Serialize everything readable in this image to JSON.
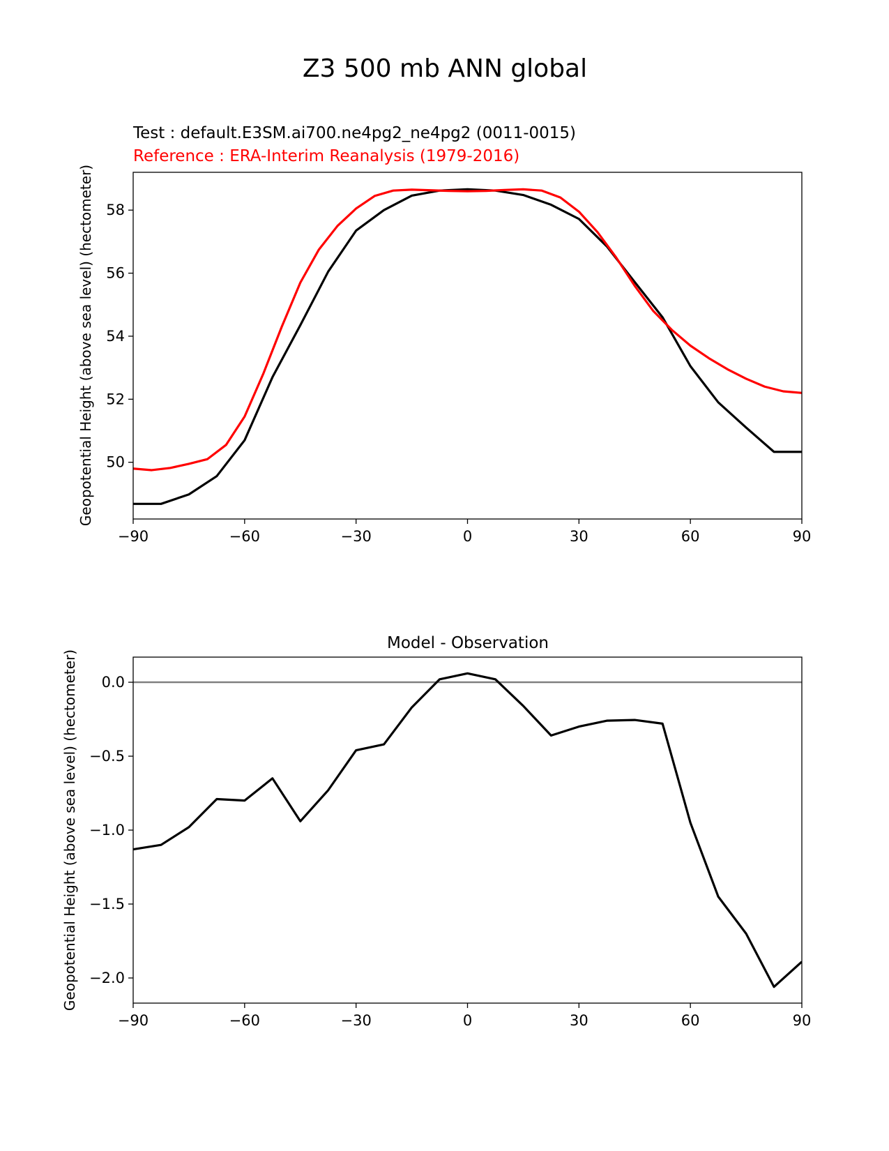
{
  "figure": {
    "suptitle": "Z3 500 mb ANN global"
  },
  "chart_data": [
    {
      "type": "line",
      "test_label": "Test : default.E3SM.ai700.ne4pg2_ne4pg2 (0011-0015)",
      "reference_label": "Reference : ERA-Interim Reanalysis (1979-2016)",
      "xlabel": "",
      "ylabel": "Geopotential Height (above sea level) (hectometer)",
      "xlim": [
        -90,
        90
      ],
      "ylim": [
        48.2,
        59.2
      ],
      "xticks": [
        -90,
        -60,
        -30,
        0,
        30,
        60,
        90
      ],
      "xtick_labels": [
        "−90",
        "−60",
        "−30",
        "0",
        "30",
        "60",
        "90"
      ],
      "yticks": [
        50,
        52,
        54,
        56,
        58
      ],
      "ytick_labels": [
        "50",
        "52",
        "54",
        "56",
        "58"
      ],
      "series": [
        {
          "name": "Test",
          "color": "#000000",
          "x": [
            -90,
            -82.5,
            -75,
            -67.5,
            -60,
            -52.5,
            -45,
            -37.5,
            -30,
            -22.5,
            -15,
            -7.5,
            0,
            7.5,
            15,
            22.5,
            30,
            37.5,
            45,
            52.5,
            60,
            67.5,
            75,
            82.5,
            90
          ],
          "y": [
            48.68,
            48.68,
            48.98,
            49.56,
            50.7,
            52.7,
            54.35,
            56.05,
            57.35,
            58.0,
            58.46,
            58.62,
            58.66,
            58.62,
            58.48,
            58.17,
            57.72,
            56.85,
            55.72,
            54.6,
            53.05,
            51.9,
            51.1,
            50.33,
            50.33
          ]
        },
        {
          "name": "Reference",
          "color": "#ff0000",
          "x": [
            -90,
            -85,
            -80,
            -75,
            -70,
            -65,
            -60,
            -55,
            -50,
            -45,
            -40,
            -35,
            -30,
            -25,
            -20,
            -15,
            -10,
            -5,
            0,
            5,
            10,
            15,
            20,
            25,
            30,
            35,
            40,
            45,
            50,
            55,
            60,
            65,
            70,
            75,
            80,
            85,
            90
          ],
          "y": [
            49.8,
            49.75,
            49.82,
            49.95,
            50.1,
            50.55,
            51.45,
            52.8,
            54.3,
            55.7,
            56.75,
            57.5,
            58.05,
            58.45,
            58.62,
            58.65,
            58.63,
            58.61,
            58.6,
            58.61,
            58.64,
            58.66,
            58.62,
            58.4,
            57.95,
            57.3,
            56.5,
            55.6,
            54.8,
            54.2,
            53.7,
            53.3,
            52.95,
            52.65,
            52.4,
            52.25,
            52.2
          ]
        }
      ]
    },
    {
      "type": "line",
      "title": "Model - Observation",
      "xlabel": "",
      "ylabel": "Geopotential Height (above sea level) (hectometer)",
      "xlim": [
        -90,
        90
      ],
      "ylim": [
        -2.17,
        0.17
      ],
      "xticks": [
        -90,
        -60,
        -30,
        0,
        30,
        60,
        90
      ],
      "xtick_labels": [
        "−90",
        "−60",
        "−30",
        "0",
        "30",
        "60",
        "90"
      ],
      "yticks": [
        0.0,
        -0.5,
        -1.0,
        -1.5,
        -2.0
      ],
      "ytick_labels": [
        "0.0",
        "−0.5",
        "−1.0",
        "−1.5",
        "−2.0"
      ],
      "hline": {
        "y": 0,
        "color": "#808080"
      },
      "series": [
        {
          "name": "Model - Observation",
          "color": "#000000",
          "x": [
            -90,
            -82.5,
            -75,
            -67.5,
            -60,
            -52.5,
            -45,
            -37.5,
            -30,
            -22.5,
            -15,
            -7.5,
            0,
            7.5,
            15,
            22.5,
            30,
            37.5,
            45,
            52.5,
            60,
            67.5,
            75,
            82.5,
            90
          ],
          "y": [
            -1.13,
            -1.1,
            -0.98,
            -0.79,
            -0.8,
            -0.65,
            -0.94,
            -0.73,
            -0.46,
            -0.42,
            -0.17,
            0.02,
            0.06,
            0.02,
            -0.16,
            -0.36,
            -0.3,
            -0.26,
            -0.255,
            -0.28,
            -0.95,
            -1.45,
            -1.7,
            -2.06,
            -1.89
          ]
        }
      ]
    }
  ]
}
